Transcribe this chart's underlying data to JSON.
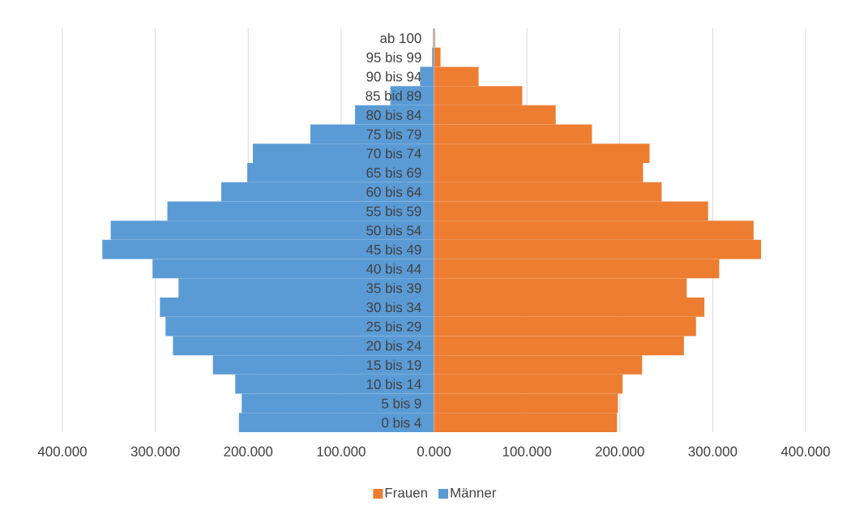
{
  "chart_data": [
    {
      "type": "bar",
      "orientation": "horizontal",
      "categories": [
        "ab 100",
        "95 bis 99",
        "90 bis 94",
        "85 bid 89",
        "80 bis 84",
        "75 bis 79",
        "70 bis 74",
        "65 bis 69",
        "60 bis 64",
        "55 bis 59",
        "50 bis 54",
        "45 bis 49",
        "40 bis 44",
        "35 bis 39",
        "30 bis 34",
        "25 bis 29",
        "20 bis 24",
        "15 bis 19",
        "10 bis 14",
        "5 bis 9",
        "0 bis 4"
      ],
      "series": [
        {
          "name": "Männer",
          "color": "#5b9bd5",
          "values": [
            1,
            2,
            15,
            47,
            85,
            133,
            195,
            201,
            229,
            287,
            348,
            357,
            303,
            275,
            295,
            289,
            281,
            238,
            214,
            207,
            210
          ]
        }
      ],
      "xlim": [
        400,
        0
      ],
      "xticks": [
        {
          "value": 400,
          "label": "400.000"
        },
        {
          "value": 300,
          "label": "300.000"
        },
        {
          "value": 200,
          "label": "200.000"
        },
        {
          "value": 100,
          "label": "100.000"
        },
        {
          "value": 0,
          "label": "0.000"
        }
      ],
      "grid": "x",
      "legend": "bottom"
    },
    {
      "type": "bar",
      "orientation": "horizontal",
      "categories": [
        null,
        null,
        null,
        null,
        null,
        null,
        null,
        null,
        null,
        null,
        null,
        null,
        null,
        null,
        null,
        null,
        null,
        null,
        null,
        null,
        null
      ],
      "series": [
        {
          "name": "Frauen",
          "color": "#ed7d31",
          "values": [
            1,
            7,
            48,
            95,
            131,
            170,
            232,
            225,
            245,
            295,
            344,
            352,
            307,
            272,
            291,
            282,
            269,
            224,
            203,
            198,
            197
          ]
        }
      ],
      "xlim": [
        0,
        400
      ],
      "xticks": [
        {
          "value": 0,
          "label": null
        },
        {
          "value": 100,
          "label": "100.000"
        },
        {
          "value": 200,
          "label": "200.000"
        },
        {
          "value": 300,
          "label": "300.000"
        },
        {
          "value": 400,
          "label": "400.000"
        }
      ],
      "grid": "x",
      "legend": "bottom",
      "tick_labels": "x"
    }
  ]
}
